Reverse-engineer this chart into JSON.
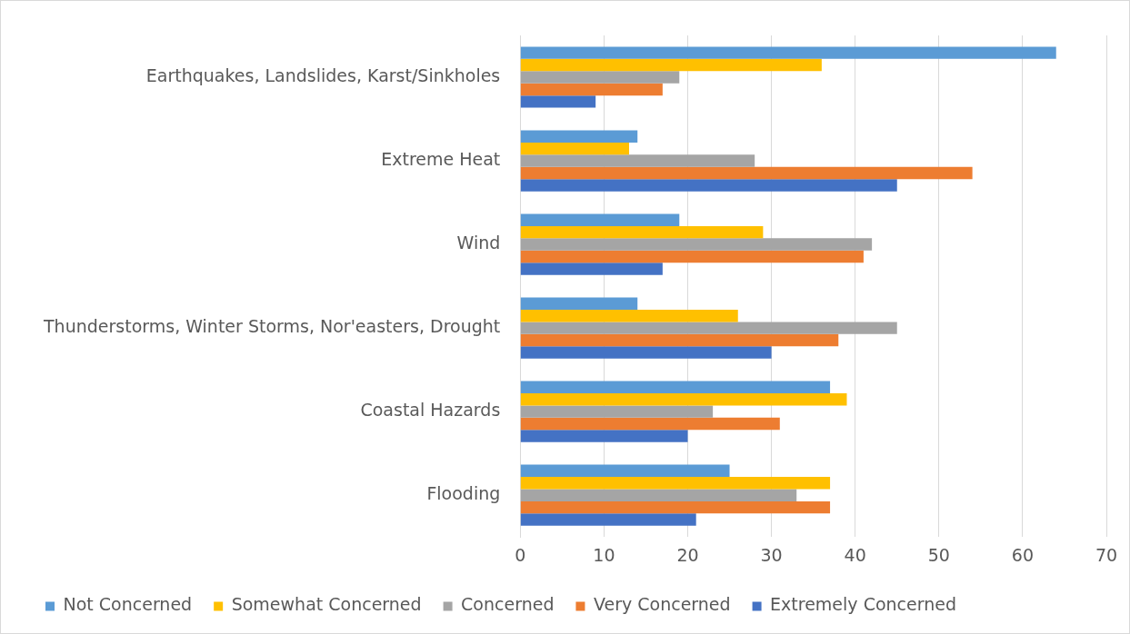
{
  "chart_data": {
    "type": "bar",
    "orientation": "horizontal",
    "categories": [
      "Earthquakes, Landslides, Karst/Sinkholes",
      "Extreme Heat",
      "Wind",
      "Thunderstorms, Winter Storms, Nor'easters, Drought",
      "Coastal Hazards",
      "Flooding"
    ],
    "series": [
      {
        "name": "Not Concerned",
        "color": "#5b9bd5",
        "values": [
          64,
          14,
          19,
          14,
          37,
          25
        ]
      },
      {
        "name": "Somewhat Concerned",
        "color": "#ffc000",
        "values": [
          36,
          13,
          29,
          26,
          39,
          37
        ]
      },
      {
        "name": "Concerned",
        "color": "#a5a5a5",
        "values": [
          19,
          28,
          42,
          45,
          23,
          33
        ]
      },
      {
        "name": "Very Concerned",
        "color": "#ed7d31",
        "values": [
          17,
          54,
          41,
          38,
          31,
          37
        ]
      },
      {
        "name": "Extremely Concerned",
        "color": "#4472c4",
        "values": [
          9,
          45,
          17,
          30,
          20,
          21
        ]
      }
    ],
    "xlim": [
      0,
      70
    ],
    "xticks": [
      0,
      10,
      20,
      30,
      40,
      50,
      60,
      70
    ],
    "grid": "x",
    "legend": "bottom"
  }
}
